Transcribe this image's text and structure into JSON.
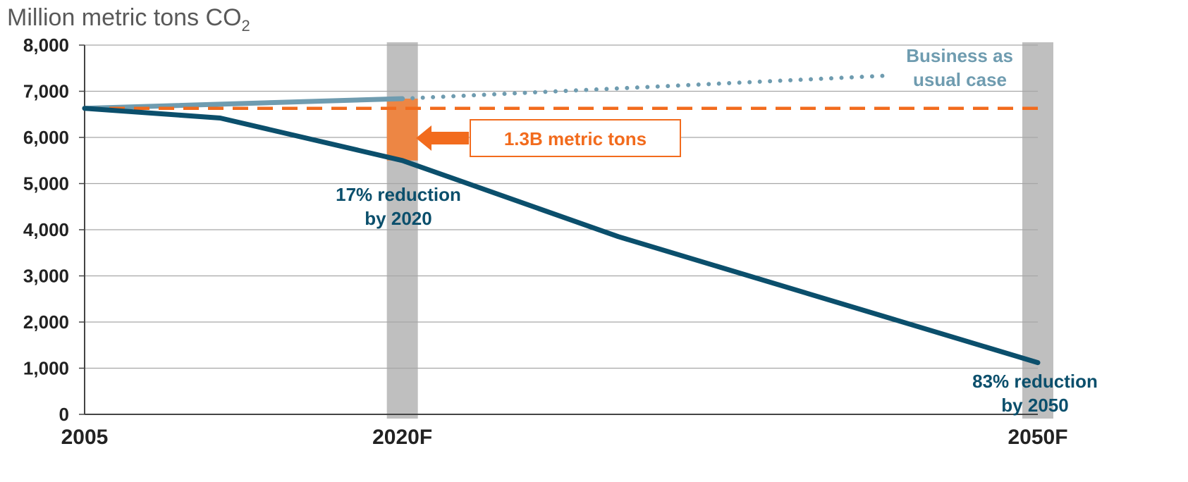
{
  "chart_data": {
    "type": "line",
    "ylabel": "Million metric tons CO",
    "ylabel_subscript": "2",
    "ylim": [
      0,
      8000
    ],
    "y_ticks": [
      "0",
      "1,000",
      "2,000",
      "3,000",
      "4,000",
      "5,000",
      "6,000",
      "7,000",
      "8,000"
    ],
    "x_tick_labels": [
      {
        "label": "2005",
        "x": 2005
      },
      {
        "label": "2020F",
        "x": 2020
      },
      {
        "label": "2050F",
        "x": 2050
      }
    ],
    "grid": true,
    "highlight_years": [
      2020,
      2050
    ],
    "series": [
      {
        "kind": "bau-actual",
        "color": "#6f9cb0",
        "points": [
          [
            2005,
            6630
          ],
          [
            2020,
            6840
          ]
        ]
      },
      {
        "kind": "bau-projection",
        "color": "#6f9cb0",
        "style": "dotted",
        "points": [
          [
            2020,
            6840
          ],
          [
            2043,
            7340
          ]
        ]
      },
      {
        "kind": "baseline-2005",
        "color": "#f26b1d",
        "style": "dashed",
        "points": [
          [
            2005,
            6630
          ],
          [
            2050,
            6630
          ]
        ]
      },
      {
        "kind": "target",
        "color": "#0b4f6c",
        "points": [
          [
            2005,
            6630
          ],
          [
            2011.4,
            6420
          ],
          [
            2020,
            5500
          ],
          [
            2030.2,
            3850
          ],
          [
            2050,
            1120
          ]
        ]
      }
    ],
    "gap": {
      "x": 2020,
      "from": 5500,
      "to": 6840,
      "color": "#ed8644"
    },
    "annotations": {
      "bau": "Business as usual case",
      "gap": "1.3B metric tons",
      "reduction_2020_line1": "17% reduction",
      "reduction_2020_line2": "by 2020",
      "reduction_2050_line1": "83% reduction",
      "reduction_2050_line2": "by 2050"
    },
    "colors": {
      "target": "#0b4f6c",
      "bau": "#6f9cb0",
      "baseline": "#f26b1d",
      "highlight_band": "#bfbfbf",
      "gridline": "#a6a6a6"
    }
  }
}
